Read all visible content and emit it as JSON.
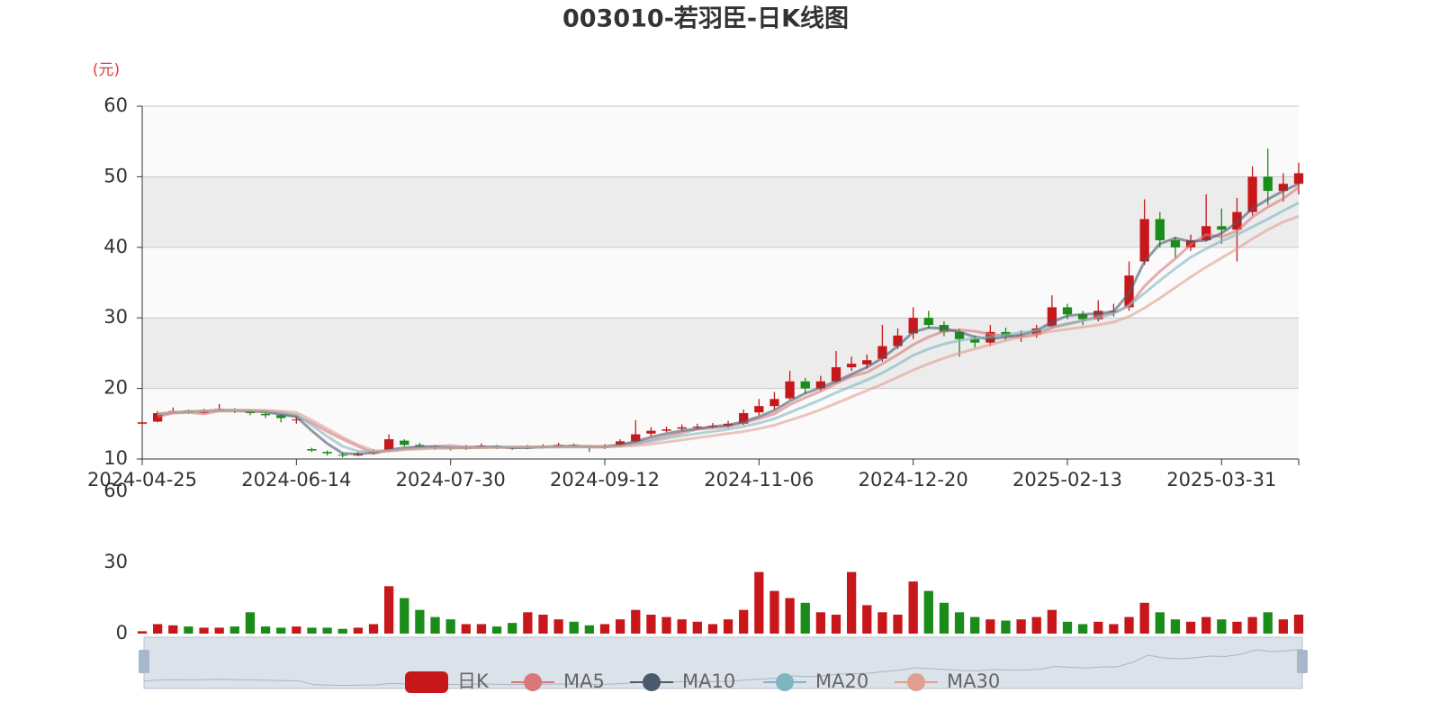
{
  "chart_data": {
    "type": "candlestick",
    "title": "003010-若羽臣-日K线图",
    "y_axis_label": "(元)",
    "categories": [
      "2024-04-25",
      null,
      null,
      null,
      null,
      null,
      null,
      null,
      null,
      null,
      "2024-06-14",
      null,
      null,
      null,
      null,
      null,
      null,
      null,
      null,
      null,
      "2024-07-30",
      null,
      null,
      null,
      null,
      null,
      null,
      null,
      null,
      null,
      "2024-09-12",
      null,
      null,
      null,
      null,
      null,
      null,
      null,
      null,
      null,
      "2024-11-06",
      null,
      null,
      null,
      null,
      null,
      null,
      null,
      null,
      null,
      "2024-12-20",
      null,
      null,
      null,
      null,
      null,
      null,
      null,
      null,
      null,
      "2025-02-13",
      null,
      null,
      null,
      null,
      null,
      null,
      null,
      null,
      null,
      "2025-03-31",
      null,
      null,
      null,
      null,
      null
    ],
    "candles": {
      "name": "日K",
      "up_color": "#c8171a",
      "down_color": "#1a8c1a",
      "values": [
        [
          15.0,
          15.2,
          14.9,
          15.4
        ],
        [
          15.3,
          16.5,
          15.2,
          16.8
        ],
        [
          16.6,
          16.8,
          16.4,
          17.3
        ],
        [
          16.9,
          16.6,
          16.4,
          17.0
        ],
        [
          16.5,
          16.9,
          16.4,
          17.1
        ],
        [
          16.9,
          17.1,
          16.7,
          17.8
        ],
        [
          17.0,
          16.8,
          16.5,
          17.2
        ],
        [
          16.8,
          16.5,
          16.2,
          16.9
        ],
        [
          16.4,
          16.2,
          15.8,
          16.6
        ],
        [
          16.2,
          15.8,
          15.2,
          16.3
        ],
        [
          15.6,
          15.6,
          15.0,
          16.1
        ],
        [
          11.4,
          11.2,
          11.0,
          11.6
        ],
        [
          11.0,
          10.8,
          10.5,
          11.2
        ],
        [
          10.6,
          10.5,
          10.2,
          10.9
        ],
        [
          10.5,
          10.7,
          10.4,
          11.0
        ],
        [
          10.8,
          11.0,
          10.6,
          11.4
        ],
        [
          11.2,
          12.8,
          11.0,
          13.5
        ],
        [
          12.6,
          12.0,
          11.8,
          12.8
        ],
        [
          12.0,
          11.8,
          11.5,
          12.3
        ],
        [
          11.8,
          11.6,
          11.3,
          12.0
        ],
        [
          11.6,
          11.5,
          11.2,
          11.8
        ],
        [
          11.4,
          11.7,
          11.3,
          12.0
        ],
        [
          11.7,
          11.9,
          11.5,
          12.2
        ],
        [
          11.9,
          11.6,
          11.4,
          12.0
        ],
        [
          11.6,
          11.5,
          11.3,
          11.8
        ],
        [
          11.5,
          11.7,
          11.4,
          12.0
        ],
        [
          11.7,
          11.8,
          11.5,
          12.1
        ],
        [
          11.8,
          12.0,
          11.6,
          12.3
        ],
        [
          12.0,
          11.9,
          11.6,
          12.2
        ],
        [
          11.9,
          11.6,
          11.0,
          12.0
        ],
        [
          11.6,
          11.8,
          11.4,
          12.1
        ],
        [
          11.8,
          12.5,
          11.7,
          12.8
        ],
        [
          12.5,
          13.5,
          12.3,
          15.5
        ],
        [
          13.6,
          14.0,
          13.2,
          14.5
        ],
        [
          14.0,
          14.2,
          13.8,
          14.6
        ],
        [
          14.3,
          14.5,
          14.0,
          14.9
        ],
        [
          14.5,
          14.6,
          14.2,
          15.0
        ],
        [
          14.7,
          14.7,
          14.3,
          15.1
        ],
        [
          14.7,
          15.0,
          14.4,
          15.4
        ],
        [
          15.0,
          16.5,
          14.8,
          17.0
        ],
        [
          16.6,
          17.5,
          16.2,
          18.5
        ],
        [
          17.5,
          18.5,
          17.0,
          19.5
        ],
        [
          18.6,
          21.0,
          18.4,
          22.5
        ],
        [
          21.0,
          20.0,
          19.2,
          21.5
        ],
        [
          20.0,
          21.0,
          19.6,
          21.8
        ],
        [
          21.0,
          23.0,
          20.8,
          25.3
        ],
        [
          23.0,
          23.5,
          22.5,
          24.5
        ],
        [
          23.4,
          24.0,
          22.8,
          24.8
        ],
        [
          24.2,
          26.0,
          23.8,
          29.0
        ],
        [
          26.0,
          27.5,
          25.6,
          28.5
        ],
        [
          27.8,
          30.0,
          27.0,
          31.5
        ],
        [
          30.0,
          29.0,
          28.5,
          31.0
        ],
        [
          29.0,
          28.0,
          27.4,
          29.5
        ],
        [
          28.0,
          27.0,
          24.5,
          28.5
        ],
        [
          27.0,
          26.5,
          25.8,
          27.5
        ],
        [
          26.5,
          28.0,
          26.0,
          29.0
        ],
        [
          28.0,
          27.5,
          26.8,
          28.6
        ],
        [
          27.5,
          27.5,
          26.6,
          28.2
        ],
        [
          27.6,
          28.5,
          27.2,
          29.0
        ],
        [
          28.8,
          31.5,
          28.5,
          33.2
        ],
        [
          31.5,
          30.5,
          29.8,
          32.0
        ],
        [
          30.5,
          29.8,
          29.0,
          31.0
        ],
        [
          29.8,
          31.0,
          29.5,
          32.5
        ],
        [
          31.0,
          31.0,
          30.2,
          32.0
        ],
        [
          31.5,
          36.0,
          31.0,
          38.0
        ],
        [
          38.0,
          44.0,
          37.5,
          46.8
        ],
        [
          44.0,
          41.0,
          40.0,
          45.0
        ],
        [
          41.0,
          40.0,
          38.5,
          41.5
        ],
        [
          40.0,
          41.0,
          39.5,
          41.8
        ],
        [
          41.0,
          43.0,
          40.8,
          47.5
        ],
        [
          43.0,
          42.5,
          40.5,
          45.5
        ],
        [
          42.5,
          45.0,
          38.0,
          47.0
        ],
        [
          45.0,
          50.0,
          44.5,
          51.5
        ],
        [
          50.0,
          48.0,
          46.0,
          54.0
        ],
        [
          48.0,
          49.0,
          46.5,
          50.5
        ],
        [
          49.0,
          50.5,
          47.5,
          52.0
        ]
      ]
    },
    "series": [
      {
        "name": "MA5",
        "color": "#d9777a",
        "values": [
          null,
          16.0,
          16.5,
          16.6,
          16.4,
          16.8,
          16.8,
          16.8,
          16.7,
          16.5,
          16.1,
          15.1,
          13.9,
          12.8,
          11.8,
          10.8,
          11.2,
          11.4,
          11.7,
          11.8,
          11.9,
          11.7,
          11.7,
          11.7,
          11.6,
          11.7,
          11.7,
          11.7,
          11.8,
          11.8,
          11.8,
          12.0,
          12.3,
          12.7,
          13.2,
          13.7,
          14.2,
          14.4,
          14.6,
          15.1,
          15.7,
          16.4,
          17.7,
          18.7,
          19.6,
          20.7,
          21.7,
          22.3,
          23.5,
          24.8,
          26.2,
          27.3,
          28.1,
          28.3,
          28.1,
          27.7,
          27.4,
          27.3,
          27.6,
          28.6,
          29.1,
          29.6,
          30.3,
          30.7,
          31.7,
          34.5,
          36.6,
          38.4,
          40.4,
          41.8,
          41.5,
          42.3,
          44.3,
          45.7,
          46.9,
          48.5
        ]
      },
      {
        "name": "MA10",
        "color": "#4a5a6a",
        "values": [
          null,
          16.3,
          16.6,
          16.7,
          16.8,
          16.9,
          16.9,
          16.8,
          16.7,
          16.3,
          16.0,
          14.0,
          12.2,
          10.8,
          10.7,
          10.9,
          11.3,
          11.6,
          11.7,
          11.7,
          11.6,
          11.6,
          11.7,
          11.7,
          11.6,
          11.6,
          11.7,
          11.8,
          11.8,
          11.7,
          11.7,
          12.0,
          12.5,
          13.1,
          13.6,
          14.0,
          14.3,
          14.6,
          14.8,
          15.3,
          16.0,
          16.9,
          18.2,
          19.3,
          20.1,
          21.0,
          22.0,
          23.0,
          24.3,
          26.0,
          28.0,
          28.6,
          28.5,
          28.0,
          27.3,
          27.0,
          27.3,
          27.6,
          28.2,
          29.4,
          30.3,
          30.5,
          30.6,
          30.9,
          33.5,
          38.0,
          40.5,
          41.3,
          40.8,
          41.0,
          42.0,
          43.5,
          45.5,
          46.8,
          48.0,
          49.0
        ]
      },
      {
        "name": "MA20",
        "color": "#7fb5c0",
        "values": [
          null,
          16.4,
          16.6,
          16.7,
          16.8,
          16.9,
          16.9,
          16.9,
          16.8,
          16.6,
          16.3,
          14.8,
          13.2,
          11.8,
          11.1,
          11.0,
          11.2,
          11.4,
          11.5,
          11.6,
          11.6,
          11.6,
          11.6,
          11.7,
          11.7,
          11.7,
          11.7,
          11.7,
          11.7,
          11.7,
          11.7,
          11.8,
          12.1,
          12.5,
          12.9,
          13.3,
          13.6,
          13.9,
          14.2,
          14.6,
          15.1,
          15.7,
          16.6,
          17.5,
          18.4,
          19.4,
          20.3,
          21.2,
          22.2,
          23.4,
          24.7,
          25.6,
          26.3,
          26.8,
          27.1,
          27.3,
          27.6,
          27.9,
          28.2,
          28.7,
          29.2,
          29.6,
          30.0,
          30.6,
          31.8,
          33.5,
          35.3,
          37.0,
          38.6,
          39.8,
          40.9,
          41.8,
          42.9,
          44.0,
          45.2,
          46.3
        ]
      },
      {
        "name": "MA30",
        "color": "#e0a08f",
        "values": [
          null,
          16.4,
          16.6,
          16.7,
          16.8,
          16.9,
          16.9,
          16.9,
          16.9,
          16.8,
          16.6,
          15.5,
          14.3,
          13.1,
          12.0,
          11.2,
          11.1,
          11.3,
          11.4,
          11.5,
          11.5,
          11.6,
          11.6,
          11.6,
          11.7,
          11.7,
          11.7,
          11.7,
          11.7,
          11.7,
          11.7,
          11.8,
          11.9,
          12.1,
          12.4,
          12.7,
          13.0,
          13.3,
          13.6,
          13.9,
          14.3,
          14.8,
          15.5,
          16.2,
          17.0,
          17.9,
          18.8,
          19.7,
          20.6,
          21.6,
          22.6,
          23.5,
          24.3,
          25.0,
          25.6,
          26.2,
          26.8,
          27.3,
          27.7,
          28.1,
          28.4,
          28.7,
          29.0,
          29.4,
          30.2,
          31.4,
          32.8,
          34.3,
          35.8,
          37.2,
          38.5,
          39.8,
          41.2,
          42.5,
          43.6,
          44.4
        ]
      }
    ],
    "ylim": [
      10,
      60
    ],
    "yticks": [
      10,
      20,
      30,
      40,
      50,
      60
    ],
    "grid": true,
    "volume": {
      "values": [
        1,
        4,
        3.5,
        3,
        2.5,
        2.5,
        3,
        9,
        3,
        2.5,
        3,
        2.5,
        2.5,
        2,
        2.5,
        4,
        20,
        15,
        10,
        7,
        6,
        4,
        4,
        3,
        4.5,
        9,
        8,
        6,
        5,
        3.5,
        4,
        6,
        10,
        8,
        7,
        6,
        5,
        4,
        6,
        10,
        26,
        18,
        15,
        13,
        9,
        8,
        26,
        12,
        9,
        8,
        22,
        18,
        13,
        9,
        7,
        6,
        5.5,
        6,
        7,
        10,
        5,
        4,
        5,
        4,
        7,
        13,
        9,
        6,
        5,
        7,
        6,
        5,
        7,
        9,
        6,
        8
      ],
      "ylim": [
        0,
        60
      ],
      "yticks": [
        0,
        30,
        60
      ]
    },
    "legend": "bottom"
  }
}
